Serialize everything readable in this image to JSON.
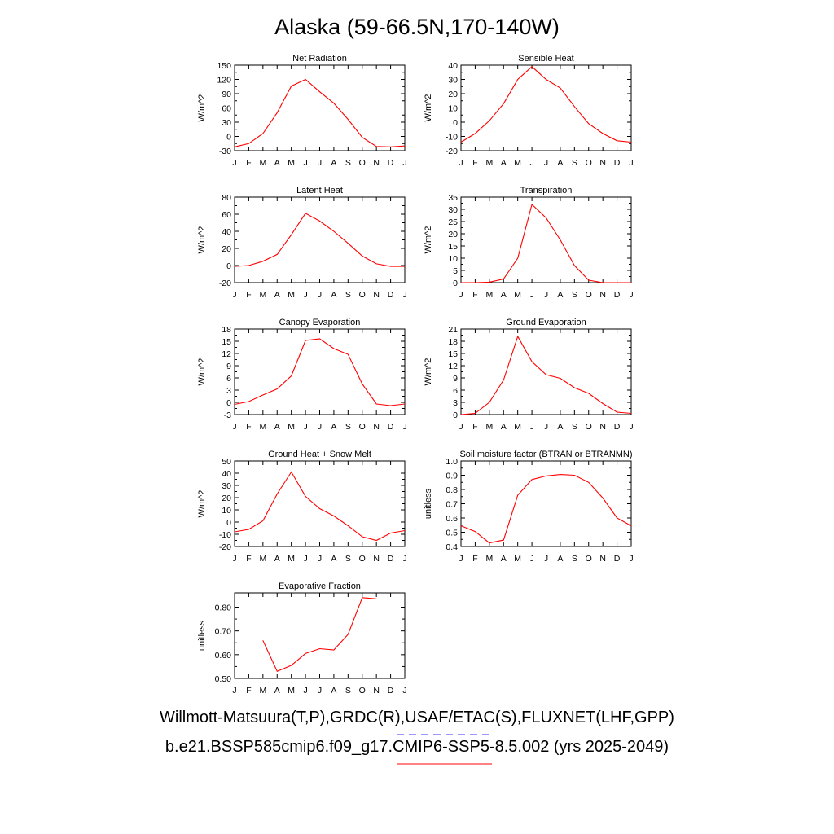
{
  "title": "Alaska (59-66.5N,170-140W)",
  "footer": {
    "obs": "Willmott-Matsuura(T,P),GRDC(R),USAF/ETAC(S),FLUXNET(LHF,GPP)",
    "model": "b.e21.BSSP585cmip6.f09_g17.CMIP6-SSP5-8.5.002 (yrs 2025-2049)",
    "obs_line_color": "#3333ff",
    "model_line_color": "#ff0000"
  },
  "chart_data": [
    {
      "type": "line",
      "title": "Net Radiation",
      "ylabel": "W/m^2",
      "x": [
        "J",
        "F",
        "M",
        "A",
        "M",
        "J",
        "J",
        "A",
        "S",
        "O",
        "N",
        "D",
        "J"
      ],
      "ylim": [
        -30,
        150
      ],
      "yticks": [
        "-30",
        "0",
        "30",
        "60",
        "90",
        "120",
        "150"
      ],
      "series": [
        {
          "color": "#ff0000",
          "values": [
            -22,
            -15,
            6,
            50,
            106,
            120,
            94,
            70,
            36,
            -2,
            -21,
            -22,
            -20
          ]
        }
      ]
    },
    {
      "type": "line",
      "title": "Sensible Heat",
      "ylabel": "W/m^2",
      "x": [
        "J",
        "F",
        "M",
        "A",
        "M",
        "J",
        "J",
        "A",
        "S",
        "O",
        "N",
        "D",
        "J"
      ],
      "ylim": [
        -20,
        40
      ],
      "yticks": [
        "-20",
        "-10",
        "0",
        "10",
        "20",
        "30",
        "40"
      ],
      "series": [
        {
          "color": "#ff0000",
          "values": [
            -14,
            -8,
            1,
            13,
            30,
            39,
            30,
            24,
            11,
            -1,
            -8,
            -13,
            -14
          ]
        }
      ]
    },
    {
      "type": "line",
      "title": "Latent Heat",
      "ylabel": "W/m^2",
      "x": [
        "J",
        "F",
        "M",
        "A",
        "M",
        "J",
        "J",
        "A",
        "S",
        "O",
        "N",
        "D",
        "J"
      ],
      "ylim": [
        -20,
        80
      ],
      "yticks": [
        "-20",
        "0",
        "20",
        "40",
        "60",
        "80"
      ],
      "series": [
        {
          "color": "#ff0000",
          "values": [
            -1,
            0,
            5,
            13,
            36,
            61,
            52,
            40,
            26,
            11,
            2,
            -1,
            -1
          ]
        }
      ]
    },
    {
      "type": "line",
      "title": "Transpiration",
      "ylabel": "W/m^2",
      "x": [
        "J",
        "F",
        "M",
        "A",
        "M",
        "J",
        "J",
        "A",
        "S",
        "O",
        "N",
        "D",
        "J"
      ],
      "ylim": [
        0,
        35
      ],
      "yticks": [
        "0",
        "5",
        "10",
        "15",
        "20",
        "25",
        "30",
        "35"
      ],
      "series": [
        {
          "color": "#ff0000",
          "values": [
            0,
            0,
            0.2,
            1.5,
            10,
            32,
            26.5,
            17.5,
            7,
            1,
            0,
            0,
            0
          ]
        }
      ]
    },
    {
      "type": "line",
      "title": "Canopy Evaporation",
      "ylabel": "W/m^2",
      "x": [
        "J",
        "F",
        "M",
        "A",
        "M",
        "J",
        "J",
        "A",
        "S",
        "O",
        "N",
        "D",
        "J"
      ],
      "ylim": [
        -3,
        18
      ],
      "yticks": [
        "-3",
        "0",
        "3",
        "6",
        "9",
        "12",
        "15",
        "18"
      ],
      "series": [
        {
          "color": "#ff0000",
          "values": [
            -0.5,
            0.2,
            1.8,
            3.3,
            6.5,
            15.2,
            15.6,
            13.2,
            11.8,
            4.5,
            -0.4,
            -0.8,
            -0.4
          ]
        }
      ]
    },
    {
      "type": "line",
      "title": "Ground Evaporation",
      "ylabel": "W/m^2",
      "x": [
        "J",
        "F",
        "M",
        "A",
        "M",
        "J",
        "J",
        "A",
        "S",
        "O",
        "N",
        "D",
        "J"
      ],
      "ylim": [
        0,
        21
      ],
      "yticks": [
        "0",
        "3",
        "6",
        "9",
        "12",
        "15",
        "18",
        "21"
      ],
      "series": [
        {
          "color": "#ff0000",
          "values": [
            0,
            0.3,
            3,
            8.5,
            19.2,
            13,
            9.8,
            8.9,
            6.6,
            5.2,
            2.7,
            0.6,
            0.3
          ]
        }
      ]
    },
    {
      "type": "line",
      "title": "Ground Heat + Snow Melt",
      "ylabel": "W/m^2",
      "x": [
        "J",
        "F",
        "M",
        "A",
        "M",
        "J",
        "J",
        "A",
        "S",
        "O",
        "N",
        "D",
        "J"
      ],
      "ylim": [
        -20,
        50
      ],
      "yticks": [
        "-20",
        "-10",
        "0",
        "10",
        "20",
        "30",
        "40",
        "50"
      ],
      "series": [
        {
          "color": "#ff0000",
          "values": [
            -8,
            -6,
            1,
            23,
            41,
            21,
            11,
            5,
            -3,
            -12,
            -15,
            -9,
            -7
          ]
        }
      ]
    },
    {
      "type": "line",
      "title": "Soil moisture factor (BTRAN or BTRANMN)",
      "ylabel": "unitless",
      "x": [
        "J",
        "F",
        "M",
        "A",
        "M",
        "J",
        "J",
        "A",
        "S",
        "O",
        "N",
        "D",
        "J"
      ],
      "ylim": [
        0.4,
        1.0
      ],
      "yticks": [
        "0.4",
        "0.5",
        "0.6",
        "0.7",
        "0.8",
        "0.9",
        "1.0"
      ],
      "series": [
        {
          "color": "#ff0000",
          "values": [
            0.545,
            0.505,
            0.425,
            0.445,
            0.76,
            0.87,
            0.895,
            0.905,
            0.9,
            0.85,
            0.74,
            0.6,
            0.545
          ]
        }
      ]
    },
    {
      "type": "line",
      "title": "Evaporative Fraction",
      "ylabel": "unitless",
      "x": [
        "J",
        "F",
        "M",
        "A",
        "M",
        "J",
        "J",
        "A",
        "S",
        "O",
        "N",
        "D",
        "J"
      ],
      "ylim": [
        0.5,
        0.86
      ],
      "yticks": [
        "0.50",
        "0.60",
        "0.70",
        "0.80"
      ],
      "ytick_values": [
        0.5,
        0.6,
        0.7,
        0.8
      ],
      "series": [
        {
          "color": "#ff0000",
          "values": [
            null,
            null,
            0.66,
            0.53,
            0.555,
            0.605,
            0.625,
            0.62,
            0.685,
            0.84,
            0.835,
            null,
            null
          ]
        }
      ]
    }
  ]
}
